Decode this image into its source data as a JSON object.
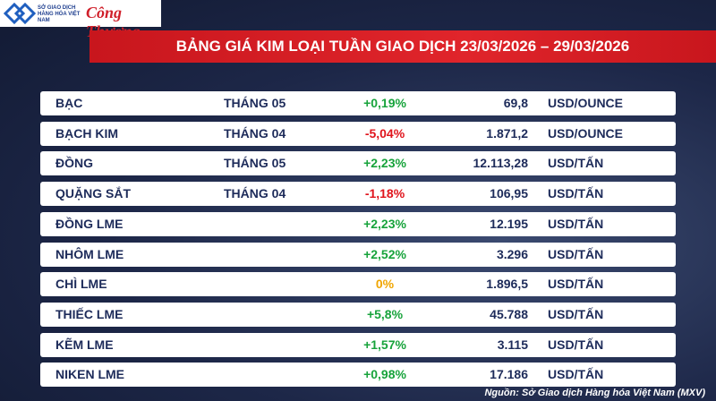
{
  "header": {
    "logo_org": "SỞ GIAO DỊCH HÀNG HÓA VIỆT NAM",
    "logo_paper": "Công Thương",
    "title": "BẢNG GIÁ KIM LOẠI TUẦN GIAO DỊCH 23/03/2026 – 29/03/2026"
  },
  "table": {
    "rows": [
      [
        "BẠC",
        "THÁNG 05",
        "+0,19%",
        "69,8",
        "USD/OUNCE"
      ],
      [
        "BẠCH KIM",
        "THÁNG 04",
        "-5,04%",
        "1.871,2",
        "USD/OUNCE"
      ],
      [
        "ĐỒNG",
        "THÁNG 05",
        "+2,23%",
        "12.113,28",
        "USD/TẤN"
      ],
      [
        "QUẶNG SẮT",
        "THÁNG 04",
        "-1,18%",
        "106,95",
        "USD/TẤN"
      ],
      [
        "ĐỒNG LME",
        null,
        "+2,23%",
        "12.195",
        "USD/TẤN"
      ],
      [
        "NHÔM LME",
        null,
        "+2,52%",
        "3.296",
        "USD/TẤN"
      ],
      [
        "CHÌ LME",
        null,
        "0%",
        "1.896,5",
        "USD/TẤN"
      ],
      [
        "THIẾC LME",
        null,
        "+5,8%",
        "45.788",
        "USD/TẤN"
      ],
      [
        "KẼM LME",
        null,
        "+1,57%",
        "3.115",
        "USD/TẤN"
      ],
      [
        "NIKEN LME",
        null,
        "+0,98%",
        "17.186",
        "USD/TẤN"
      ]
    ]
  },
  "footer": {
    "source": "Nguồn: Sở Giao dịch Hàng hóa Việt Nam (MXV)"
  }
}
